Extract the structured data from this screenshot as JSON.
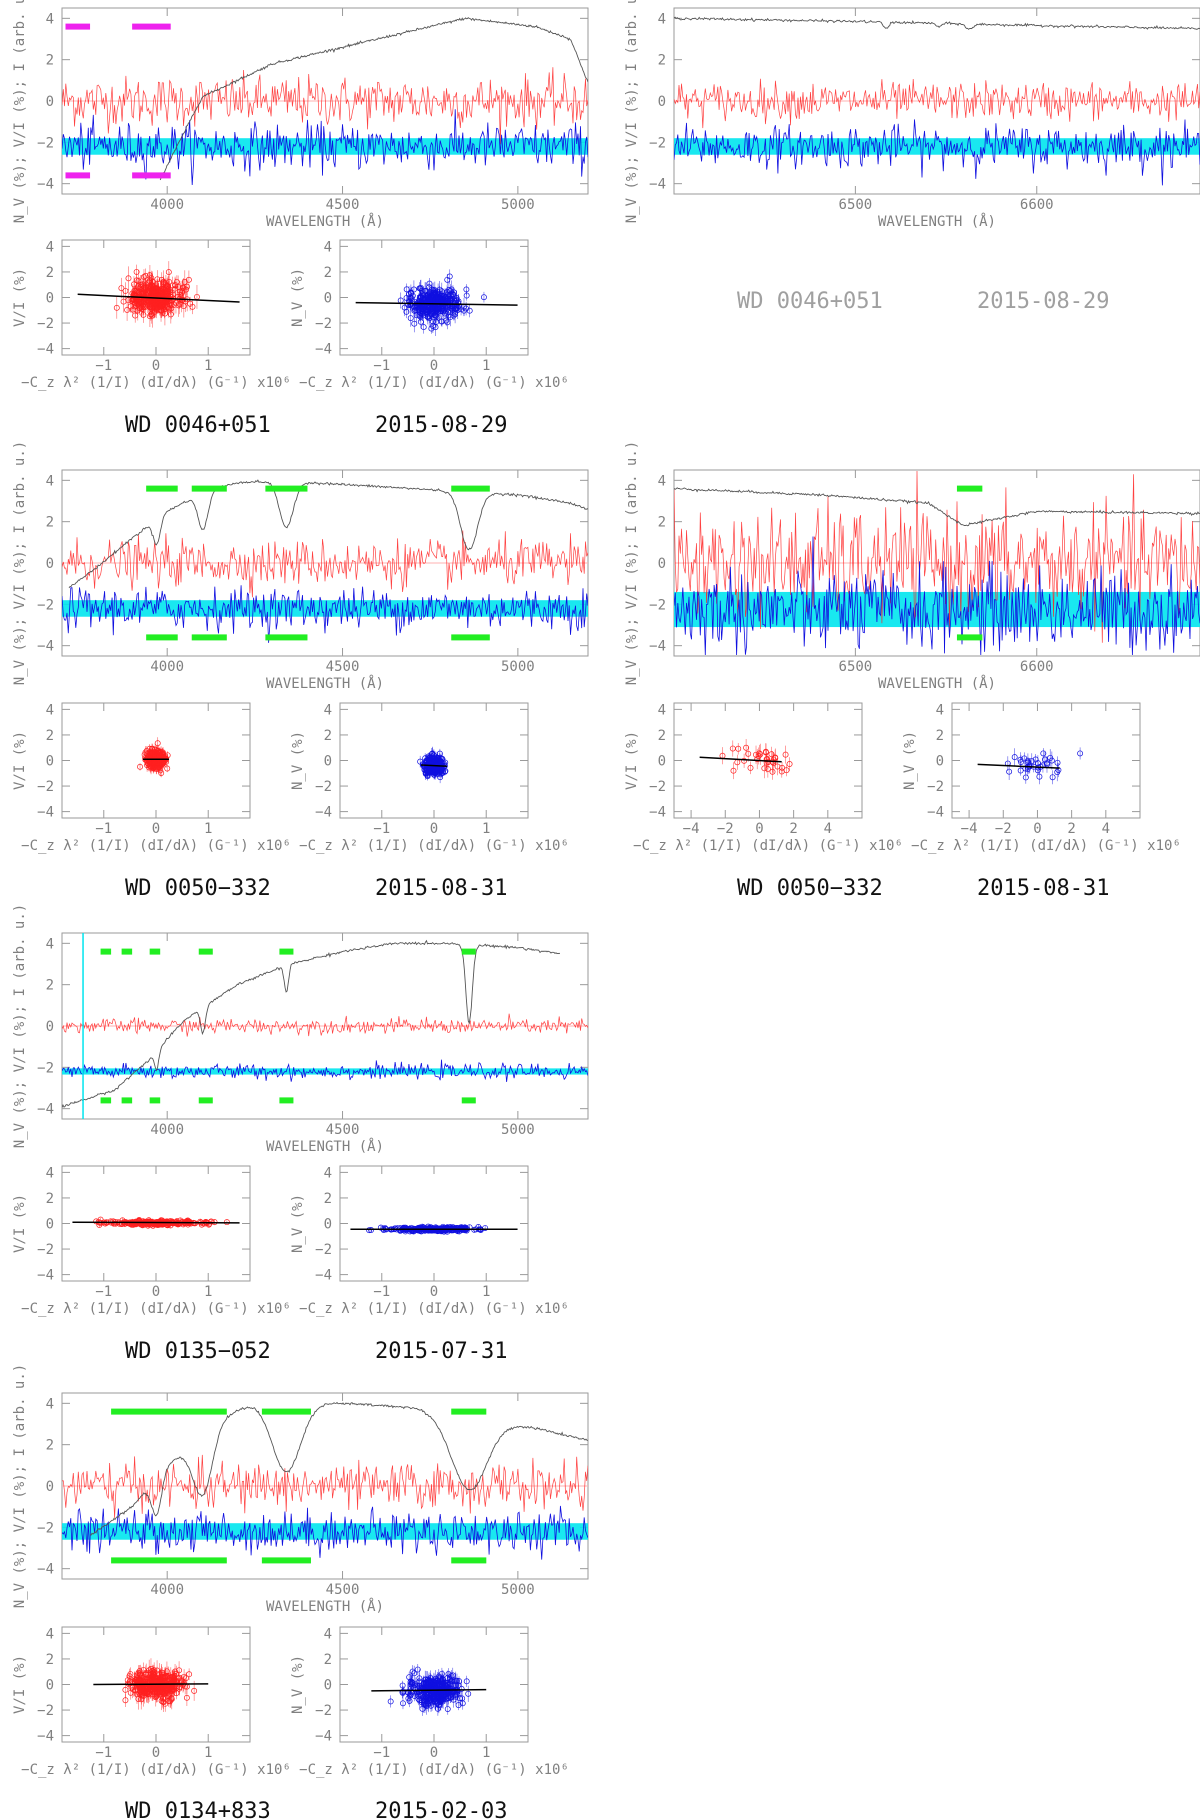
{
  "labels": {
    "wavelength_axis": "WAVELENGTH (Å)",
    "spectrum_yaxis": "N_V (%); V/I (%); I (arb. u.)",
    "vi_axis": "V/I (%)",
    "nv_axis": "N_V (%)",
    "field_axis": "−C_z λ² (1/I) (dI/dλ) (G⁻¹) x10⁶"
  },
  "colors": {
    "stokes_v": "#ff2020",
    "null": "#1010e0",
    "intensity": "#555555",
    "band": "#00e5ee",
    "mask_green": "#22ee22",
    "mask_magenta": "#ee22ee"
  },
  "captions": [
    {
      "star": "WD 0046+051",
      "date": "2015-08-29"
    },
    {
      "star": "WD 0046+051",
      "date": "2015-08-29"
    },
    {
      "star": "WD 0050−332",
      "date": "2015-08-31"
    },
    {
      "star": "WD 0050−332",
      "date": "2015-08-31"
    },
    {
      "star": "WD 0135−052",
      "date": "2015-07-31"
    },
    {
      "star": "WD 0134+833",
      "date": "2015-02-03"
    }
  ],
  "chart_data": [
    {
      "type": "line",
      "panel": "WD 0046+051 blue spectrum",
      "xlim": [
        3700,
        5200
      ],
      "ylim": [
        -4.5,
        4.5
      ],
      "x_ticks": [
        4000,
        4500,
        5000
      ],
      "y_ticks": [
        -4,
        -2,
        0,
        2,
        4
      ],
      "intensity_start": 3980,
      "intensity_profile": [
        [
          3980,
          -3.8
        ],
        [
          4100,
          0.2
        ],
        [
          4300,
          1.8
        ],
        [
          4600,
          3.0
        ],
        [
          4850,
          4.0
        ],
        [
          5050,
          3.6
        ],
        [
          5150,
          3.0
        ],
        [
          5200,
          0.9
        ]
      ],
      "line_dips": [],
      "v_mean": 0,
      "v_noise": 0.6,
      "n_mean": -2.2,
      "n_noise": 0.55,
      "band": [
        -2.6,
        -1.8
      ],
      "masks_top": [
        [
          3710,
          3780
        ],
        [
          3900,
          4010
        ]
      ],
      "masks_bottom": [
        [
          3710,
          3780
        ],
        [
          3900,
          4010
        ]
      ],
      "mask_color": "magenta"
    },
    {
      "type": "line",
      "panel": "WD 0046+051 red spectrum",
      "xlim": [
        6400,
        6690
      ],
      "ylim": [
        -4.5,
        4.5
      ],
      "x_ticks": [
        6500,
        6600
      ],
      "y_ticks": [
        -4,
        -2,
        0,
        2,
        4
      ],
      "intensity_start": 6400,
      "intensity_profile": [
        [
          6400,
          4.0
        ],
        [
          6500,
          3.85
        ],
        [
          6600,
          3.65
        ],
        [
          6690,
          3.5
        ]
      ],
      "line_dips": [
        [
          6517,
          0.3,
          1.5
        ],
        [
          6546,
          0.2,
          1.2
        ],
        [
          6563,
          0.25,
          2.0
        ]
      ],
      "v_mean": 0,
      "v_noise": 0.45,
      "n_mean": -2.2,
      "n_noise": 0.5,
      "band": [
        -2.6,
        -1.8
      ],
      "masks_top": [],
      "masks_bottom": [],
      "mask_color": "green"
    },
    {
      "type": "line",
      "panel": "WD 0050-332 blue spectrum",
      "xlim": [
        3700,
        5200
      ],
      "ylim": [
        -4.5,
        4.5
      ],
      "x_ticks": [
        4000,
        4500,
        5000
      ],
      "y_ticks": [
        -4,
        -2,
        0,
        2,
        4
      ],
      "intensity_start": 3720,
      "intensity_profile": [
        [
          3720,
          -1.2
        ],
        [
          3800,
          -0.2
        ],
        [
          3900,
          1.2
        ],
        [
          4000,
          2.5
        ],
        [
          4100,
          3.4
        ],
        [
          4200,
          3.9
        ],
        [
          4300,
          3.95
        ],
        [
          4400,
          3.9
        ],
        [
          4600,
          3.7
        ],
        [
          4800,
          3.5
        ],
        [
          5000,
          3.3
        ],
        [
          5150,
          2.9
        ],
        [
          5200,
          2.6
        ]
      ],
      "line_dips": [
        [
          3970,
          1.2,
          10
        ],
        [
          4102,
          1.8,
          14
        ],
        [
          4340,
          2.2,
          20
        ],
        [
          4861,
          2.8,
          24
        ]
      ],
      "v_mean": 0,
      "v_noise": 0.55,
      "n_mean": -2.2,
      "n_noise": 0.5,
      "band": [
        -2.6,
        -1.8
      ],
      "masks_top": [
        [
          3940,
          4030
        ],
        [
          4070,
          4170
        ],
        [
          4280,
          4400
        ],
        [
          4810,
          4920
        ]
      ],
      "masks_bottom": [
        [
          3940,
          4030
        ],
        [
          4070,
          4170
        ],
        [
          4280,
          4400
        ],
        [
          4810,
          4920
        ]
      ],
      "mask_color": "green"
    },
    {
      "type": "line",
      "panel": "WD 0050-332 red spectrum",
      "xlim": [
        6400,
        6690
      ],
      "ylim": [
        -4.5,
        4.5
      ],
      "x_ticks": [
        6500,
        6600
      ],
      "y_ticks": [
        -4,
        -2,
        0,
        2,
        4
      ],
      "intensity_start": 6400,
      "intensity_profile": [
        [
          6400,
          3.6
        ],
        [
          6480,
          3.3
        ],
        [
          6540,
          2.9
        ],
        [
          6560,
          1.8
        ],
        [
          6570,
          2.0
        ],
        [
          6600,
          2.5
        ],
        [
          6690,
          2.4
        ]
      ],
      "line_dips": [],
      "v_mean": 0,
      "v_noise": 1.3,
      "n_mean": -2.3,
      "n_noise": 1.0,
      "band": [
        -3.1,
        -1.4
      ],
      "masks_top": [
        [
          6556,
          6570
        ]
      ],
      "masks_bottom": [
        [
          6556,
          6570
        ]
      ],
      "mask_color": "green"
    },
    {
      "type": "line",
      "panel": "WD 0135-052 blue spectrum",
      "xlim": [
        3700,
        5200
      ],
      "ylim": [
        -4.5,
        4.5
      ],
      "x_ticks": [
        4000,
        4500,
        5000
      ],
      "y_ticks": [
        -4,
        -2,
        0,
        2,
        4
      ],
      "intensity_start": 3700,
      "intensity_profile": [
        [
          3700,
          -3.9
        ],
        [
          3850,
          -3.1
        ],
        [
          3950,
          -1.6
        ],
        [
          4050,
          0.3
        ],
        [
          4200,
          2.0
        ],
        [
          4350,
          3.0
        ],
        [
          4500,
          3.6
        ],
        [
          4650,
          4.0
        ],
        [
          4800,
          4.0
        ],
        [
          5000,
          3.8
        ],
        [
          5120,
          3.5
        ]
      ],
      "line_dips": [
        [
          3970,
          0.9,
          6
        ],
        [
          4102,
          1.2,
          7
        ],
        [
          4340,
          1.3,
          6
        ],
        [
          4861,
          3.8,
          9
        ]
      ],
      "intensity_end": 5120,
      "v_mean": 0,
      "v_noise": 0.18,
      "n_mean": -2.2,
      "n_noise": 0.18,
      "band": [
        -2.35,
        -2.05
      ],
      "masks_top": [
        [
          3810,
          3840
        ],
        [
          3870,
          3900
        ],
        [
          3950,
          3980
        ],
        [
          4090,
          4130
        ],
        [
          4320,
          4360
        ],
        [
          4840,
          4880
        ]
      ],
      "masks_bottom": [
        [
          3810,
          3840
        ],
        [
          3870,
          3900
        ],
        [
          3950,
          3980
        ],
        [
          4090,
          4130
        ],
        [
          4320,
          4360
        ],
        [
          4840,
          4880
        ]
      ],
      "mask_color": "green",
      "vline": 3760
    },
    {
      "type": "line",
      "panel": "WD 0134+833 blue spectrum",
      "xlim": [
        3700,
        5200
      ],
      "ylim": [
        -4.5,
        4.5
      ],
      "x_ticks": [
        4000,
        4500,
        5000
      ],
      "y_ticks": [
        -4,
        -2,
        0,
        2,
        4
      ],
      "intensity_start": 3780,
      "intensity_profile": [
        [
          3780,
          -2.4
        ],
        [
          3900,
          -1.0
        ],
        [
          4000,
          1.0
        ],
        [
          4150,
          3.3
        ],
        [
          4250,
          4.0
        ],
        [
          4500,
          4.0
        ],
        [
          4700,
          3.8
        ],
        [
          4900,
          3.2
        ],
        [
          5050,
          2.8
        ],
        [
          5200,
          2.2
        ]
      ],
      "line_dips": [
        [
          3970,
          1.8,
          14
        ],
        [
          4102,
          3.0,
          28
        ],
        [
          4340,
          3.3,
          40
        ],
        [
          4861,
          3.5,
          50
        ]
      ],
      "v_mean": 0,
      "v_noise": 0.55,
      "n_mean": -2.2,
      "n_noise": 0.5,
      "band": [
        -2.6,
        -1.8
      ],
      "masks_top": [
        [
          3840,
          4170
        ],
        [
          4270,
          4410
        ],
        [
          4810,
          4910
        ]
      ],
      "masks_bottom": [
        [
          3840,
          4170
        ],
        [
          4270,
          4410
        ],
        [
          4810,
          4910
        ]
      ],
      "mask_color": "green"
    },
    {
      "type": "scatter",
      "panel": "WD 0046+051 V/I vs field",
      "quantity": "V/I",
      "xlim": [
        -1.8,
        1.8
      ],
      "ylim": [
        -4.5,
        4.5
      ],
      "x_ticks": [
        -1,
        0,
        1
      ],
      "y_ticks": [
        -4,
        -2,
        0,
        2,
        4
      ],
      "center": [
        0,
        0
      ],
      "spread": [
        0.25,
        0.7
      ],
      "n_points": 320,
      "errbar": 0.8,
      "fit": [
        [
          -1.5,
          0.25
        ],
        [
          1.6,
          -0.35
        ]
      ]
    },
    {
      "type": "scatter",
      "panel": "WD 0046+051 N vs field",
      "quantity": "N",
      "xlim": [
        -1.8,
        1.8
      ],
      "ylim": [
        -4.5,
        4.5
      ],
      "x_ticks": [
        -1,
        0,
        1
      ],
      "y_ticks": [
        -4,
        -2,
        0,
        2,
        4
      ],
      "center": [
        0,
        -0.5
      ],
      "spread": [
        0.25,
        0.65
      ],
      "n_points": 320,
      "errbar": 0.6,
      "fit": [
        [
          -1.5,
          -0.4
        ],
        [
          1.6,
          -0.6
        ]
      ]
    },
    {
      "type": "scatter",
      "panel": "WD 0050-332 V/I vs field (blue)",
      "quantity": "V/I",
      "xlim": [
        -1.8,
        1.8
      ],
      "ylim": [
        -4.5,
        4.5
      ],
      "x_ticks": [
        -1,
        0,
        1
      ],
      "y_ticks": [
        -4,
        -2,
        0,
        2,
        4
      ],
      "center": [
        0,
        0.1
      ],
      "spread": [
        0.09,
        0.35
      ],
      "n_points": 260,
      "errbar": 0.45,
      "fit": [
        [
          -0.25,
          0.1
        ],
        [
          0.25,
          0.1
        ]
      ]
    },
    {
      "type": "scatter",
      "panel": "WD 0050-332 N vs field (blue)",
      "quantity": "N",
      "xlim": [
        -1.8,
        1.8
      ],
      "ylim": [
        -4.5,
        4.5
      ],
      "x_ticks": [
        -1,
        0,
        1
      ],
      "y_ticks": [
        -4,
        -2,
        0,
        2,
        4
      ],
      "center": [
        0,
        -0.4
      ],
      "spread": [
        0.09,
        0.35
      ],
      "n_points": 260,
      "errbar": 0.45,
      "fit": [
        [
          -0.25,
          -0.35
        ],
        [
          0.25,
          -0.45
        ]
      ]
    },
    {
      "type": "scatter",
      "panel": "WD 0050-332 V/I vs field (red)",
      "quantity": "V/I",
      "xlim": [
        -5,
        6
      ],
      "ylim": [
        -4.5,
        4.5
      ],
      "x_ticks": [
        -4,
        -2,
        0,
        2,
        4
      ],
      "y_ticks": [
        -4,
        -2,
        0,
        2,
        4
      ],
      "center": [
        0,
        0
      ],
      "spread": [
        1.1,
        0.6
      ],
      "n_points": 35,
      "errbar": 0.7,
      "fit": [
        [
          -3.5,
          0.25
        ],
        [
          1.3,
          -0.1
        ]
      ]
    },
    {
      "type": "scatter",
      "panel": "WD 0050-332 N vs field (red)",
      "quantity": "N",
      "xlim": [
        -5,
        6
      ],
      "ylim": [
        -4.5,
        4.5
      ],
      "x_ticks": [
        -4,
        -2,
        0,
        2,
        4
      ],
      "y_ticks": [
        -4,
        -2,
        0,
        2,
        4
      ],
      "center": [
        0,
        -0.4
      ],
      "spread": [
        1.1,
        0.5
      ],
      "n_points": 35,
      "errbar": 0.6,
      "fit": [
        [
          -3.5,
          -0.3
        ],
        [
          1.3,
          -0.6
        ]
      ]
    },
    {
      "type": "scatter",
      "panel": "WD 0135-052 V/I vs field",
      "quantity": "V/I",
      "xlim": [
        -1.8,
        1.8
      ],
      "ylim": [
        -4.5,
        4.5
      ],
      "x_ticks": [
        -1,
        0,
        1
      ],
      "y_ticks": [
        -4,
        -2,
        0,
        2,
        4
      ],
      "center": [
        0,
        0.05
      ],
      "spread": [
        0.45,
        0.08
      ],
      "n_points": 260,
      "errbar": 0.18,
      "fit": [
        [
          -1.6,
          0.1
        ],
        [
          1.6,
          0.05
        ]
      ]
    },
    {
      "type": "scatter",
      "panel": "WD 0135-052 N vs field",
      "quantity": "N",
      "xlim": [
        -1.8,
        1.8
      ],
      "ylim": [
        -4.5,
        4.5
      ],
      "x_ticks": [
        -1,
        0,
        1
      ],
      "y_ticks": [
        -4,
        -2,
        0,
        2,
        4
      ],
      "center": [
        0,
        -0.45
      ],
      "spread": [
        0.45,
        0.08
      ],
      "n_points": 260,
      "errbar": 0.18,
      "fit": [
        [
          -1.6,
          -0.45
        ],
        [
          1.6,
          -0.45
        ]
      ]
    },
    {
      "type": "scatter",
      "panel": "WD 0134+833 V/I vs field",
      "quantity": "V/I",
      "xlim": [
        -1.8,
        1.8
      ],
      "ylim": [
        -4.5,
        4.5
      ],
      "x_ticks": [
        -1,
        0,
        1
      ],
      "y_ticks": [
        -4,
        -2,
        0,
        2,
        4
      ],
      "center": [
        0,
        0
      ],
      "spread": [
        0.25,
        0.6
      ],
      "n_points": 320,
      "errbar": 0.7,
      "fit": [
        [
          -1.2,
          0.0
        ],
        [
          1.0,
          0.05
        ]
      ]
    },
    {
      "type": "scatter",
      "panel": "WD 0134+833 N vs field",
      "quantity": "N",
      "xlim": [
        -1.8,
        1.8
      ],
      "ylim": [
        -4.5,
        4.5
      ],
      "x_ticks": [
        -1,
        0,
        1
      ],
      "y_ticks": [
        -4,
        -2,
        0,
        2,
        4
      ],
      "center": [
        0,
        -0.5
      ],
      "spread": [
        0.25,
        0.55
      ],
      "n_points": 320,
      "errbar": 0.6,
      "fit": [
        [
          -1.2,
          -0.5
        ],
        [
          1.0,
          -0.4
        ]
      ]
    }
  ]
}
